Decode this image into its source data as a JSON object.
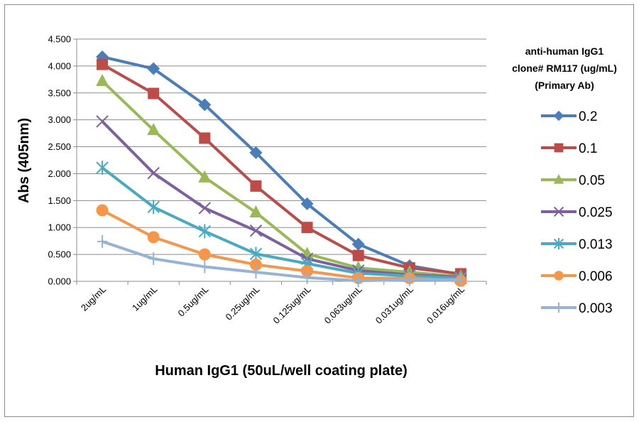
{
  "chart_data": {
    "type": "line",
    "title": "",
    "xlabel": "Human IgG1 (50uL/well coating plate)",
    "ylabel": "Abs (405nm)",
    "ylim": [
      0,
      4.5
    ],
    "yticks": [
      "0.000",
      "0.500",
      "1.000",
      "1.500",
      "2.000",
      "2.500",
      "3.000",
      "3.500",
      "4.000",
      "4.500"
    ],
    "grid": "horizontal",
    "legend_placement": "right",
    "legend_title": [
      "anti-human IgG1",
      "clone# RM117 (ug/mL)",
      "(Primary Ab)"
    ],
    "categories": [
      "2ug/mL",
      "1ug/mL",
      "0.5ug/mL",
      "0.25ug/mL",
      "0.125ug/mL",
      "0.063ug/mL",
      "0.031ug/mL",
      "0.016ug/mL"
    ],
    "series": [
      {
        "name": "0.2",
        "color": "#4a7ebb",
        "marker": "diamond",
        "values": [
          4.17,
          3.95,
          3.28,
          2.39,
          1.44,
          0.69,
          0.29,
          0.13
        ]
      },
      {
        "name": "0.1",
        "color": "#be4b48",
        "marker": "square",
        "values": [
          4.03,
          3.49,
          2.66,
          1.77,
          1.0,
          0.48,
          0.25,
          0.14
        ]
      },
      {
        "name": "0.05",
        "color": "#98b954",
        "marker": "triangle",
        "values": [
          3.72,
          2.81,
          1.93,
          1.28,
          0.51,
          0.25,
          0.17,
          0.09
        ]
      },
      {
        "name": "0.025",
        "color": "#7d60a0",
        "marker": "x",
        "values": [
          2.97,
          2.01,
          1.36,
          0.94,
          0.42,
          0.2,
          0.12,
          0.08
        ]
      },
      {
        "name": "0.013",
        "color": "#46aac5",
        "marker": "star",
        "values": [
          2.11,
          1.38,
          0.93,
          0.51,
          0.33,
          0.15,
          0.1,
          0.06
        ]
      },
      {
        "name": "0.006",
        "color": "#f79646",
        "marker": "circle",
        "values": [
          1.32,
          0.82,
          0.5,
          0.31,
          0.19,
          0.06,
          0.06,
          0.01
        ]
      },
      {
        "name": "0.003",
        "color": "#95b3d7",
        "marker": "plus",
        "values": [
          0.74,
          0.42,
          0.27,
          0.17,
          0.07,
          0.01,
          0.03,
          0.03
        ]
      }
    ]
  }
}
